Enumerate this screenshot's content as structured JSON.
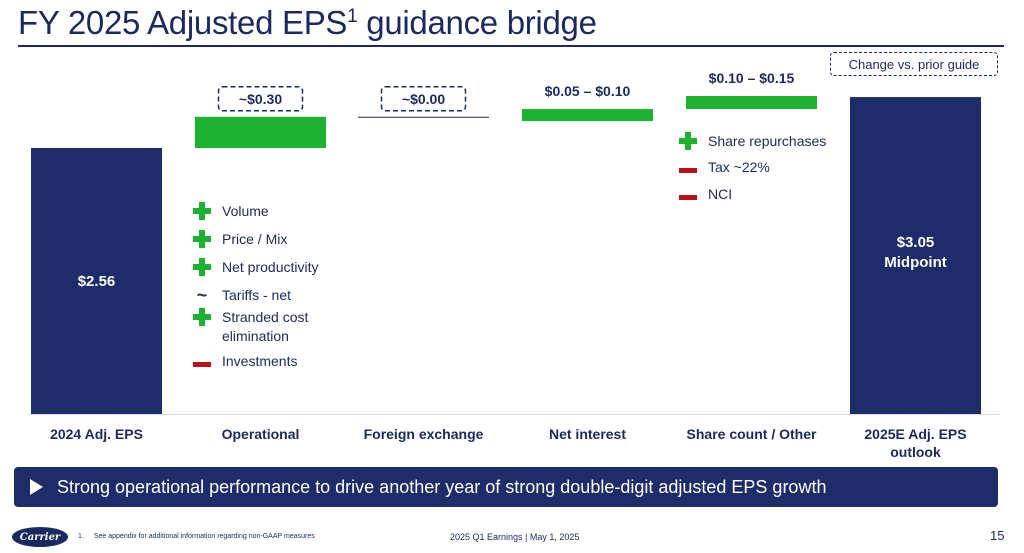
{
  "title_main": "FY 2025 Adjusted EPS",
  "title_sup": "1",
  "title_suffix": " guidance bridge",
  "legend_note": "Change vs. prior guide",
  "colors": {
    "navy": "#1b2a5e",
    "bar_navy": "#1e2c69",
    "green": "#1fb131",
    "red": "#b5121b"
  },
  "chart_data": {
    "type": "bar",
    "subtype": "waterfall",
    "categories": [
      "2024 Adj. EPS",
      "Operational",
      "Foreign exchange",
      "Net interest",
      "Share count / Other",
      "2025E Adj. EPS outlook"
    ],
    "values": [
      2.56,
      0.3,
      0.0,
      0.075,
      0.125,
      3.05
    ],
    "bar_kinds": [
      "total",
      "delta",
      "delta",
      "delta",
      "delta",
      "total"
    ],
    "data_labels": [
      "$2.56",
      "~$0.30",
      "~$0.00",
      "$0.05 – $0.10",
      "$0.10 – $0.15",
      "$3.05 Midpoint"
    ],
    "dashed_label_boxes": [
      false,
      true,
      true,
      false,
      false,
      false
    ],
    "ylim": [
      0,
      3.2
    ],
    "axis_visible": false
  },
  "operational_drivers": [
    {
      "icon": "plus-icon",
      "text": "Volume"
    },
    {
      "icon": "plus-icon",
      "text": "Price / Mix"
    },
    {
      "icon": "plus-icon",
      "text": "Net productivity"
    },
    {
      "icon": "tilde-icon",
      "text": "Tariffs - net"
    },
    {
      "icon": "plus-icon",
      "text": "Stranded cost elimination"
    },
    {
      "icon": "minus-icon",
      "text": "Investments"
    }
  ],
  "share_drivers": [
    {
      "icon": "plus-icon",
      "text": "Share repurchases"
    },
    {
      "icon": "minus-icon",
      "text": "Tax ~22%"
    },
    {
      "icon": "minus-icon",
      "text": "NCI"
    }
  ],
  "banner_text": "Strong operational performance to drive another year of strong double-digit adjusted EPS growth",
  "logo_text": "Carrier",
  "footnote_num": "1.",
  "footnote_text": "See appendix for additional information regarding non-GAAP measures",
  "event_text": "2025 Q1 Earnings | May 1, 2025",
  "page_number": "15"
}
